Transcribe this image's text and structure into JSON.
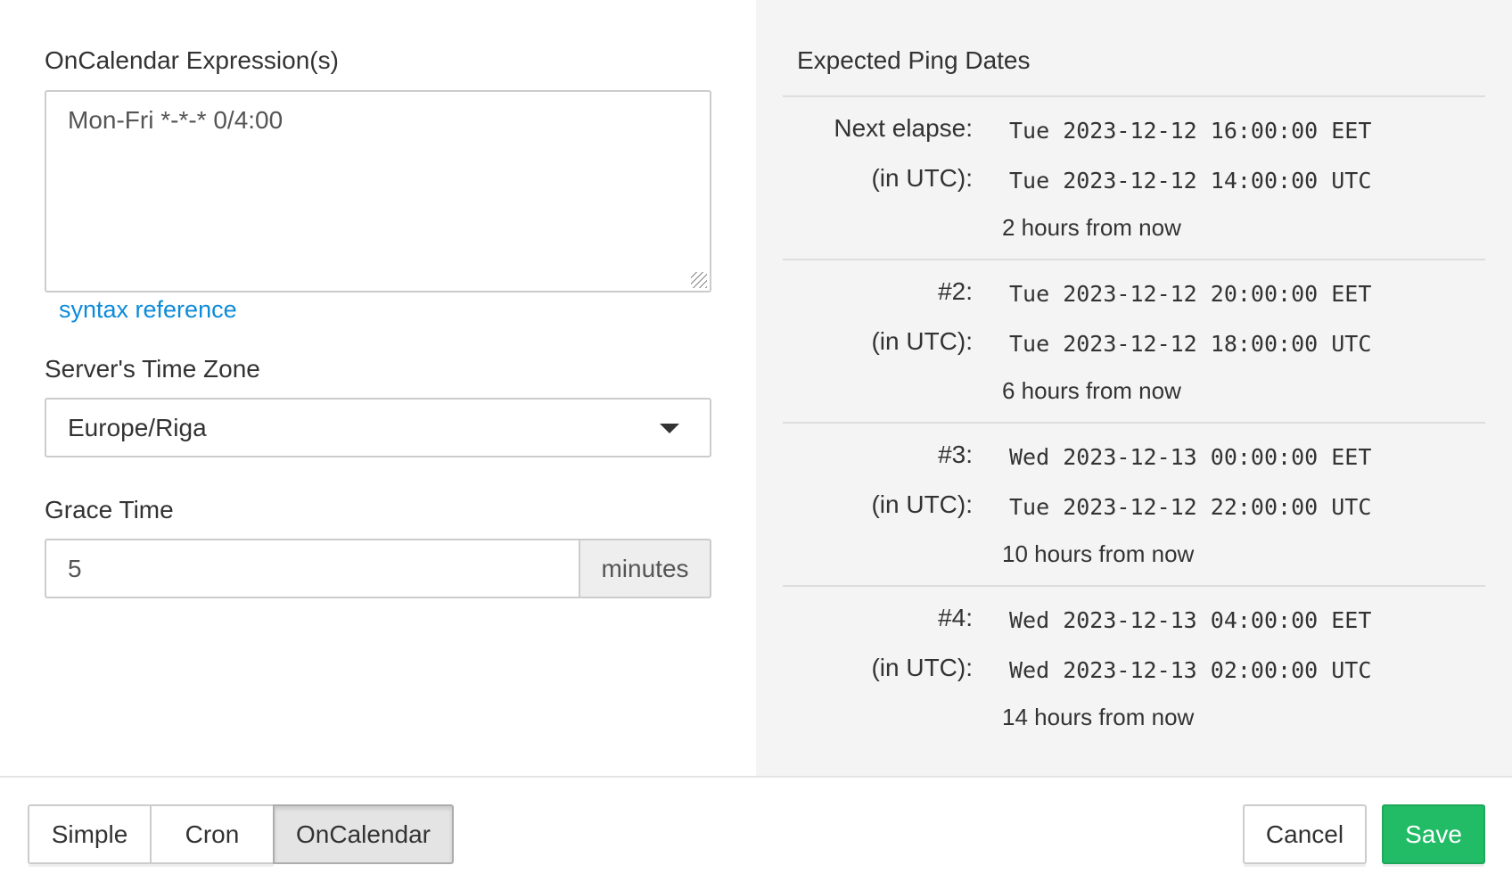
{
  "form": {
    "expression_label": "OnCalendar Expression(s)",
    "expression_value": "Mon-Fri *-*-* 0/4:00",
    "syntax_link": "syntax reference",
    "timezone_label": "Server's Time Zone",
    "timezone_value": "Europe/Riga",
    "grace_label": "Grace Time",
    "grace_value": "5",
    "grace_unit": "minutes"
  },
  "preview": {
    "title": "Expected Ping Dates",
    "entries": [
      {
        "label": "Next elapse:",
        "local": "Tue 2023-12-12 16:00:00 EET",
        "utc_label": "(in UTC):",
        "utc": "Tue 2023-12-12 14:00:00 UTC",
        "relative": "2 hours from now"
      },
      {
        "label": "#2:",
        "local": "Tue 2023-12-12 20:00:00 EET",
        "utc_label": "(in UTC):",
        "utc": "Tue 2023-12-12 18:00:00 UTC",
        "relative": "6 hours from now"
      },
      {
        "label": "#3:",
        "local": "Wed 2023-12-13 00:00:00 EET",
        "utc_label": "(in UTC):",
        "utc": "Tue 2023-12-12 22:00:00 UTC",
        "relative": "10 hours from now"
      },
      {
        "label": "#4:",
        "local": "Wed 2023-12-13 04:00:00 EET",
        "utc_label": "(in UTC):",
        "utc": "Wed 2023-12-13 02:00:00 UTC",
        "relative": "14 hours from now"
      }
    ]
  },
  "footer": {
    "modes": [
      "Simple",
      "Cron",
      "OnCalendar"
    ],
    "active_mode": "OnCalendar",
    "cancel": "Cancel",
    "save": "Save",
    "save_color": "#22bb66"
  }
}
